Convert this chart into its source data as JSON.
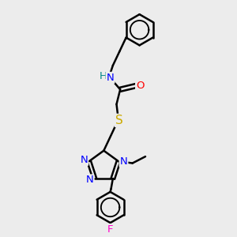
{
  "bg_color": "#ececec",
  "bond_color": "#000000",
  "bond_width": 1.8,
  "atom_colors": {
    "N": "#0000ff",
    "O": "#ff0000",
    "S": "#ccaa00",
    "F": "#ff00cc",
    "H": "#008888",
    "C": "#000000"
  },
  "font_size": 9.5,
  "xlim": [
    -1.5,
    2.2
  ],
  "ylim": [
    -3.0,
    3.2
  ]
}
